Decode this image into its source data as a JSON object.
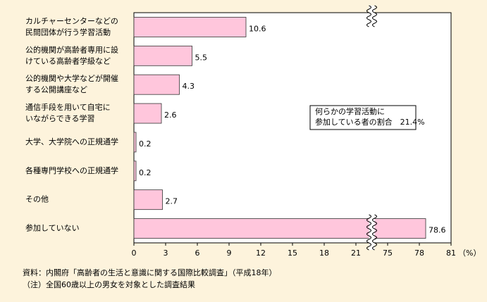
{
  "chart_data": {
    "type": "bar",
    "orientation": "horizontal",
    "categories": [
      [
        "カルチャーセンターなどの",
        "民間団体が行う学習活動"
      ],
      [
        "公的機関が高齢者専用に設",
        "けている高齢者学級など"
      ],
      [
        "公的機関や大学などが開催",
        "する公開講座など"
      ],
      [
        "通信手段を用いて自宅に",
        "いながらできる学習"
      ],
      [
        "大学、大学院への正規通学"
      ],
      [
        "各種専門学校への正規通学"
      ],
      [
        "その他"
      ],
      [
        "参加していない"
      ]
    ],
    "values": [
      10.6,
      5.5,
      4.3,
      2.6,
      0.2,
      0.2,
      2.7,
      78.6
    ],
    "color": "#ffc6dc",
    "xlim": [
      0,
      81
    ],
    "xticks": [
      0,
      3,
      6,
      9,
      12,
      15,
      18,
      21,
      75,
      78,
      81
    ],
    "axis_break": [
      22.5,
      73.5
    ],
    "x_unit": "（%）",
    "annotation": [
      "何らかの学習活動に",
      "参加している者の割合　21.4%"
    ],
    "notes": [
      "資料：内閣府「高齢者の生活と意識に関する国際比較調査」（平成18年）",
      "（注）全国60歳以上の男女を対象とした調査結果"
    ]
  }
}
